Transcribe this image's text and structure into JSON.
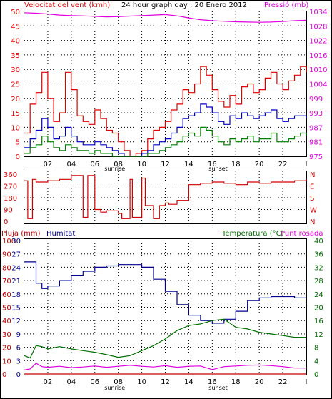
{
  "colors": {
    "frame": "#000000",
    "grid": "#000000",
    "wind": "#e00000",
    "gust": "#e00000",
    "wind_avg": "#0000c0",
    "wind_low": "#008000",
    "pressure": "#e000e0",
    "direction": "#d00000",
    "rain": "#c00000",
    "humidity": "#000090",
    "temperature": "#007000",
    "dewpoint": "#e000e0"
  },
  "chart_data": [
    {
      "type": "line",
      "title": "24 hour graph day : 20 Enero 2012",
      "left_label": "Velocitat del vent (kmh)",
      "right_label": "Pressió (mb)",
      "ylim": [
        0,
        50
      ],
      "y_ticks": [
        "0",
        "5",
        "10",
        "15",
        "20",
        "25",
        "30",
        "35",
        "40",
        "45",
        "50"
      ],
      "y2lim": [
        975,
        1031
      ],
      "y2_ticks": [
        "975",
        "981",
        "987",
        "993",
        "999",
        "1004",
        "1010",
        "1016",
        "1022",
        "1028",
        "1034"
      ],
      "x_ticks": [
        "02",
        "04",
        "06",
        "08",
        "10",
        "12",
        "14",
        "16",
        "18",
        "20",
        "22",
        "I"
      ],
      "markers": [
        "sunrise",
        "sunset"
      ],
      "series": [
        {
          "key": "gust",
          "x": [
            0,
            0.5,
            1,
            1.5,
            2,
            2.5,
            3,
            3.5,
            4,
            4.5,
            5,
            5.5,
            6,
            6.5,
            7,
            7.5,
            8,
            8.5,
            9,
            9.5,
            10,
            10.5,
            11,
            11.5,
            12,
            12.5,
            13,
            13.5,
            14,
            14.5,
            15,
            15.5,
            16,
            16.5,
            17,
            17.5,
            18,
            18.5,
            19,
            19.5,
            20,
            20.5,
            21,
            21.5,
            22,
            22.5,
            23,
            23.5,
            24
          ],
          "values": [
            8,
            18,
            22,
            29,
            20,
            12,
            15,
            29,
            23,
            14,
            12,
            11,
            16,
            13,
            9,
            8,
            5,
            2,
            0,
            1,
            2,
            6,
            9,
            10,
            12,
            16,
            18,
            23,
            22,
            25,
            31,
            28,
            23,
            19,
            17,
            21,
            18,
            24,
            25,
            22,
            23,
            27,
            29,
            25,
            23,
            26,
            28,
            31,
            29
          ]
        },
        {
          "key": "wind_avg",
          "x": [
            0,
            0.5,
            1,
            1.5,
            2,
            2.5,
            3,
            3.5,
            4,
            4.5,
            5,
            5.5,
            6,
            6.5,
            7,
            7.5,
            8,
            8.5,
            9,
            9.5,
            10,
            10.5,
            11,
            11.5,
            12,
            12.5,
            13,
            13.5,
            14,
            14.5,
            15,
            15.5,
            16,
            16.5,
            17,
            17.5,
            18,
            18.5,
            19,
            19.5,
            20,
            20.5,
            21,
            21.5,
            22,
            22.5,
            23,
            23.5,
            24
          ],
          "values": [
            3,
            6,
            9,
            13,
            10,
            6,
            7,
            10,
            7,
            5,
            4,
            4,
            5,
            4,
            3,
            2,
            1,
            0,
            0,
            0,
            1,
            2,
            4,
            5,
            6,
            8,
            10,
            13,
            14,
            15,
            18,
            17,
            15,
            12,
            11,
            14,
            13,
            15,
            14,
            13,
            14,
            15,
            16,
            13,
            12,
            13,
            14,
            14,
            13
          ]
        },
        {
          "key": "wind_low",
          "x": [
            0,
            0.5,
            1,
            1.5,
            2,
            2.5,
            3,
            3.5,
            4,
            4.5,
            5,
            5.5,
            6,
            6.5,
            7,
            7.5,
            8,
            8.5,
            9,
            9.5,
            10,
            10.5,
            11,
            11.5,
            12,
            12.5,
            13,
            13.5,
            14,
            14.5,
            15,
            15.5,
            16,
            16.5,
            17,
            17.5,
            18,
            18.5,
            19,
            19.5,
            20,
            20.5,
            21,
            21.5,
            22,
            22.5,
            23,
            23.5,
            24
          ],
          "values": [
            1,
            3,
            4,
            7,
            5,
            3,
            2,
            4,
            3,
            2,
            2,
            1,
            2,
            1,
            1,
            0,
            0,
            0,
            0,
            0,
            0,
            1,
            1,
            2,
            3,
            4,
            5,
            7,
            8,
            7,
            10,
            9,
            7,
            5,
            4,
            6,
            5,
            6,
            7,
            5,
            6,
            6,
            8,
            5,
            5,
            6,
            7,
            8,
            7
          ]
        },
        {
          "key": "pressure",
          "axis": "right",
          "x": [
            0,
            1,
            2,
            3,
            4,
            5,
            6,
            7,
            8,
            9,
            10,
            11,
            12,
            13,
            14,
            15,
            16,
            17,
            18,
            19,
            20,
            21,
            22,
            23,
            24
          ],
          "values": [
            1030.5,
            1030.3,
            1030.0,
            1029.6,
            1029.4,
            1029.3,
            1029.1,
            1028.9,
            1029.0,
            1029.2,
            1029.4,
            1029.6,
            1029.8,
            1029.3,
            1028.5,
            1027.8,
            1027.4,
            1027.2,
            1027.0,
            1026.9,
            1026.8,
            1026.9,
            1027.1,
            1027.4,
            1027.6
          ]
        }
      ]
    },
    {
      "type": "line",
      "y_ticks": [
        "0",
        "90",
        "180",
        "270",
        "360"
      ],
      "y_labels_right": [
        "N",
        "W",
        "S",
        "E",
        "N"
      ],
      "ylim": [
        0,
        360
      ],
      "series": [
        {
          "key": "direction",
          "x": [
            0,
            0.3,
            0.7,
            1,
            2,
            3,
            4,
            5,
            5.4,
            6,
            6.5,
            7,
            8,
            8.3,
            9,
            9.2,
            10,
            10.3,
            11,
            11.5,
            12,
            12.3,
            13,
            14,
            15,
            16,
            17,
            18,
            19,
            20,
            21,
            22,
            23,
            24
          ],
          "values": [
            310,
            20,
            320,
            300,
            310,
            320,
            350,
            30,
            350,
            90,
            70,
            80,
            60,
            20,
            320,
            30,
            330,
            120,
            20,
            120,
            140,
            130,
            160,
            280,
            290,
            300,
            290,
            280,
            300,
            290,
            300,
            300,
            310,
            320
          ]
        }
      ]
    },
    {
      "type": "line",
      "left_label": "Pluja (mm)",
      "humidity_label": "Humitat",
      "right_label": "Temperatura (°C)",
      "right_label2": "Punt rosada",
      "rain_ticks": [
        "0",
        "10",
        "20",
        "30",
        "40",
        "50",
        "60",
        "70",
        "80",
        "90",
        "100"
      ],
      "humidity_ticks": [
        "0",
        "3",
        "6",
        "9",
        "12",
        "15",
        "18",
        "21",
        "24",
        "27",
        "30"
      ],
      "right_ticks": [
        "0",
        "4",
        "8",
        "12",
        "16",
        "20",
        "24",
        "28",
        "32",
        "36",
        "40"
      ],
      "series": [
        {
          "key": "rain",
          "x": [
            0,
            24
          ],
          "values": [
            0,
            0
          ]
        },
        {
          "key": "humidity",
          "x": [
            0,
            0.5,
            1,
            1.5,
            2,
            3,
            4,
            5,
            6,
            7,
            8,
            9,
            10,
            11,
            12,
            13,
            14,
            15,
            16,
            17,
            18,
            19,
            20,
            21,
            22,
            23,
            24
          ],
          "values": [
            84,
            84,
            68,
            64,
            66,
            70,
            74,
            77,
            80,
            81,
            82,
            82,
            80,
            71,
            62,
            52,
            44,
            40,
            38,
            41,
            47,
            55,
            57,
            58,
            58,
            57,
            57
          ]
        },
        {
          "key": "temperature",
          "x": [
            0,
            0.5,
            1,
            1.5,
            2,
            3,
            4,
            5,
            6,
            7,
            8,
            9,
            10,
            11,
            12,
            13,
            14,
            15,
            16,
            17,
            18,
            19,
            20,
            21,
            22,
            23,
            24
          ],
          "values": [
            5.5,
            4.8,
            8.5,
            8.2,
            7.5,
            8.2,
            7.5,
            7,
            6.5,
            5.8,
            5.0,
            5.5,
            7.0,
            8.5,
            10.5,
            13,
            14.5,
            15,
            16,
            16.4,
            14,
            13.5,
            12.5,
            12,
            11.5,
            11,
            11
          ]
        },
        {
          "key": "dewpoint",
          "x": [
            0,
            0.5,
            1,
            1.5,
            2,
            3,
            4,
            5,
            6,
            7,
            8,
            9,
            10,
            11,
            12,
            13,
            14,
            15,
            16,
            17,
            18,
            19,
            20,
            21,
            22,
            23,
            24
          ],
          "values": [
            1.2,
            1.5,
            3.2,
            2.2,
            2.0,
            2.3,
            1.9,
            2.1,
            2.4,
            2.0,
            2.3,
            2.6,
            2.3,
            2.1,
            2.5,
            2.0,
            2.3,
            2.4,
            1.3,
            2.2,
            2.4,
            2.6,
            2.7,
            2.5,
            2.2,
            1.8,
            1.8
          ]
        }
      ]
    }
  ]
}
